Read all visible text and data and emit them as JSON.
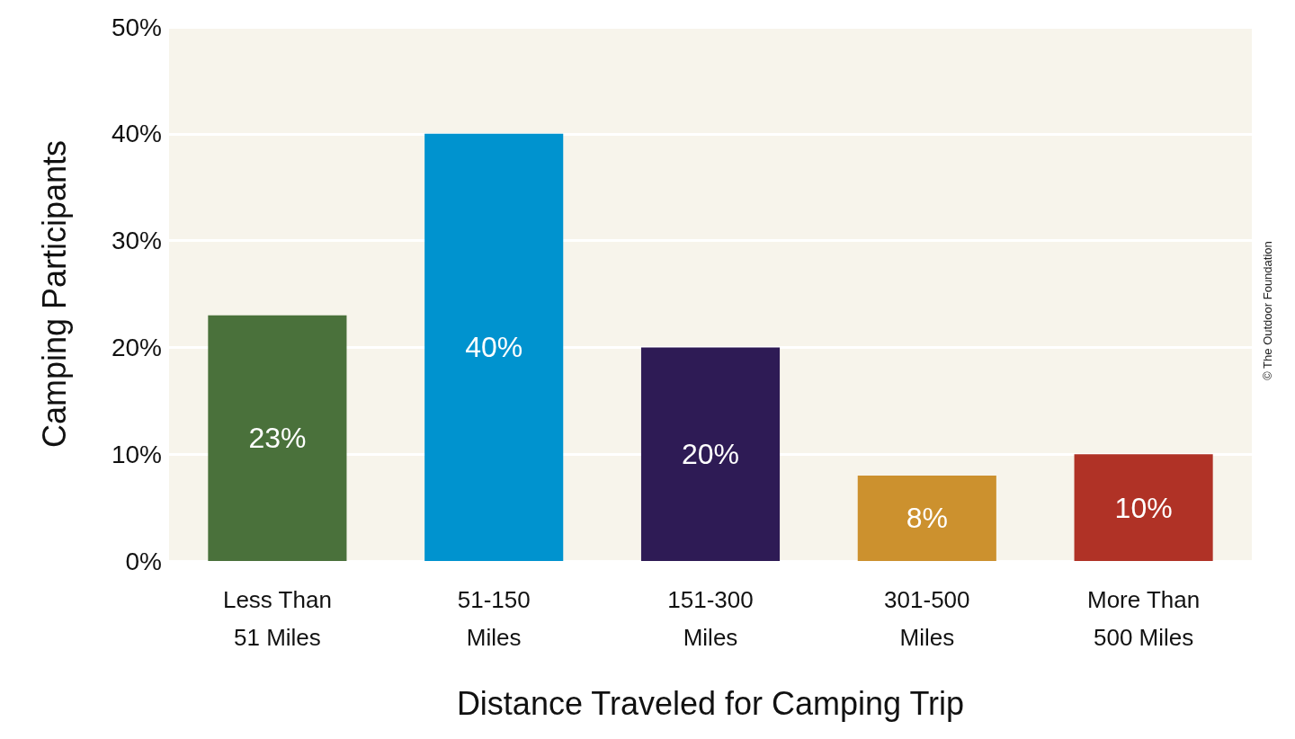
{
  "chart_data": {
    "type": "bar",
    "xlabel": "Distance Traveled for Camping Trip",
    "ylabel": "Camping Participants",
    "categories": [
      "Less Than\n51 Miles",
      "51-150\nMiles",
      "151-300\nMiles",
      "301-500\nMiles",
      "More Than\n500 Miles"
    ],
    "values": [
      23,
      40,
      20,
      8,
      10
    ],
    "colors": [
      "#4a713b",
      "#0093cf",
      "#2e1b55",
      "#cc912e",
      "#b03226"
    ],
    "value_labels": [
      "23%",
      "40%",
      "20%",
      "8%",
      "10%"
    ],
    "ylim": [
      0,
      50
    ],
    "yticks": [
      {
        "value": 0,
        "label": "0%"
      },
      {
        "value": 10,
        "label": "10%"
      },
      {
        "value": 20,
        "label": "20%"
      },
      {
        "value": 30,
        "label": "30%"
      },
      {
        "value": 40,
        "label": "40%"
      },
      {
        "value": 50,
        "label": "50%"
      }
    ],
    "grid": "y",
    "annotations": [
      "© The Outdoor Foundation"
    ]
  }
}
